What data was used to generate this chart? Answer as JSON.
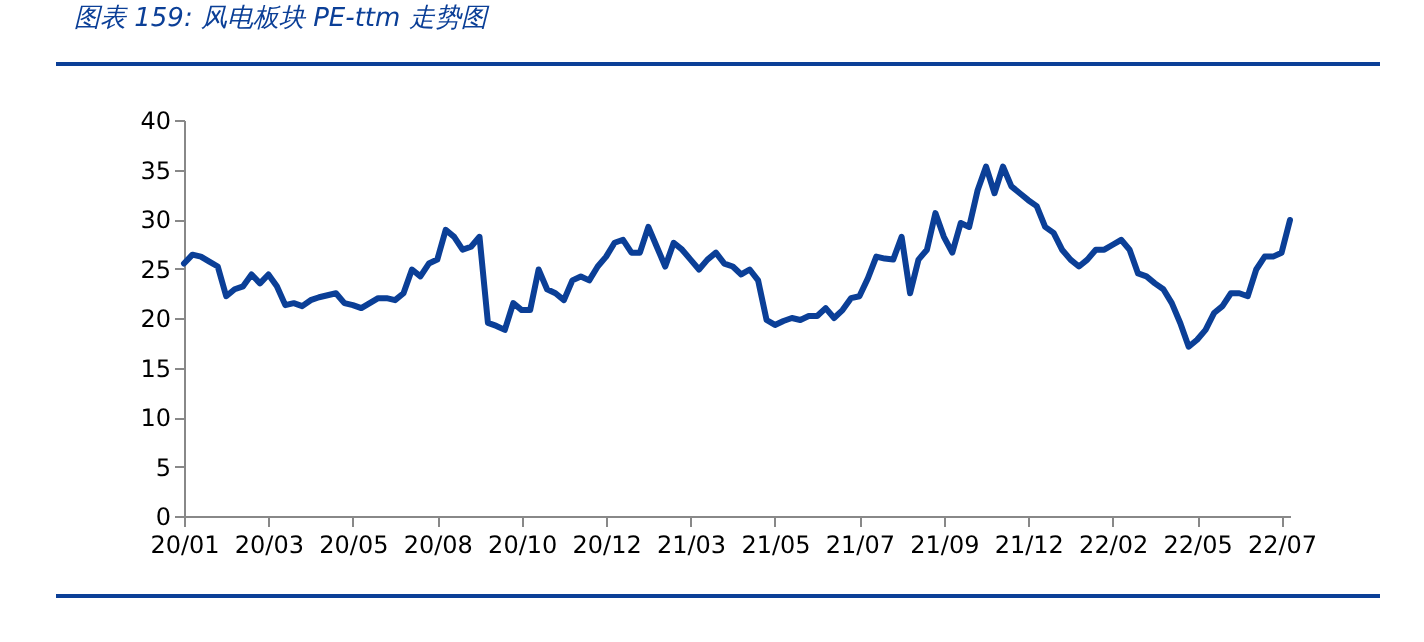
{
  "chart_data": {
    "type": "line",
    "title": "图表 159:  风电板块 PE-ttm 走势图",
    "categories": [
      "20/01",
      null,
      null,
      null,
      null,
      null,
      null,
      null,
      null,
      null,
      "20/03",
      null,
      null,
      null,
      null,
      null,
      null,
      null,
      null,
      null,
      "20/05",
      null,
      null,
      null,
      null,
      null,
      null,
      null,
      null,
      null,
      "20/08",
      null,
      null,
      null,
      null,
      null,
      null,
      null,
      null,
      null,
      "20/10",
      null,
      null,
      null,
      null,
      null,
      null,
      null,
      null,
      null,
      "20/12",
      null,
      null,
      null,
      null,
      null,
      null,
      null,
      null,
      null,
      "21/03",
      null,
      null,
      null,
      null,
      null,
      null,
      null,
      null,
      null,
      "21/05",
      null,
      null,
      null,
      null,
      null,
      null,
      null,
      null,
      null,
      "21/07",
      null,
      null,
      null,
      null,
      null,
      null,
      null,
      null,
      null,
      "21/09",
      null,
      null,
      null,
      null,
      null,
      null,
      null,
      null,
      null,
      "21/12",
      null,
      null,
      null,
      null,
      null,
      null,
      null,
      null,
      null,
      "22/02",
      null,
      null,
      null,
      null,
      null,
      null,
      null,
      null,
      null,
      "22/05",
      null,
      null,
      null,
      null,
      null,
      null,
      null,
      null,
      null,
      "22/07",
      null
    ],
    "series": [
      {
        "color": "#0b3f97",
        "values": [
          25.5,
          26.4,
          26.2,
          25.7,
          25.2,
          22.2,
          22.9,
          23.2,
          24.4,
          23.5,
          24.4,
          23.2,
          21.3,
          21.5,
          21.2,
          21.8,
          22.1,
          22.3,
          22.5,
          21.5,
          21.3,
          21.0,
          21.5,
          22.0,
          22.0,
          21.8,
          22.5,
          24.9,
          24.2,
          25.5,
          25.9,
          28.9,
          28.2,
          26.9,
          27.2,
          28.2,
          19.5,
          19.2,
          18.8,
          21.5,
          20.8,
          20.8,
          24.9,
          22.9,
          22.5,
          21.8,
          23.8,
          24.2,
          23.8,
          25.2,
          26.2,
          27.6,
          27.9,
          26.6,
          26.6,
          29.2,
          27.2,
          25.2,
          27.6,
          26.9,
          25.9,
          24.9,
          25.9,
          26.6,
          25.5,
          25.2,
          24.4,
          24.9,
          23.8,
          19.8,
          19.3,
          19.7,
          20.0,
          19.8,
          20.2,
          20.2,
          21.0,
          20.0,
          20.8,
          22.0,
          22.2,
          24.0,
          26.2,
          26.0,
          25.9,
          28.2,
          22.5,
          25.9,
          26.9,
          30.6,
          28.2,
          26.6,
          29.6,
          29.2,
          32.9,
          35.3,
          32.6,
          35.3,
          33.3,
          32.6,
          31.9,
          31.3,
          29.2,
          28.6,
          26.9,
          25.9,
          25.2,
          25.9,
          26.9,
          26.9,
          27.4,
          27.9,
          26.9,
          24.5,
          24.2,
          23.5,
          22.9,
          21.5,
          19.5,
          17.1,
          17.8,
          18.8,
          20.5,
          21.2,
          22.5,
          22.5,
          22.2,
          24.9,
          26.2,
          26.2,
          26.6,
          29.9
        ]
      }
    ],
    "ylim": [
      0,
      40
    ],
    "yticks": [
      0,
      5,
      10,
      15,
      20,
      25,
      30,
      35,
      40
    ],
    "grid": false,
    "marker": "none",
    "line_style": "solid"
  }
}
